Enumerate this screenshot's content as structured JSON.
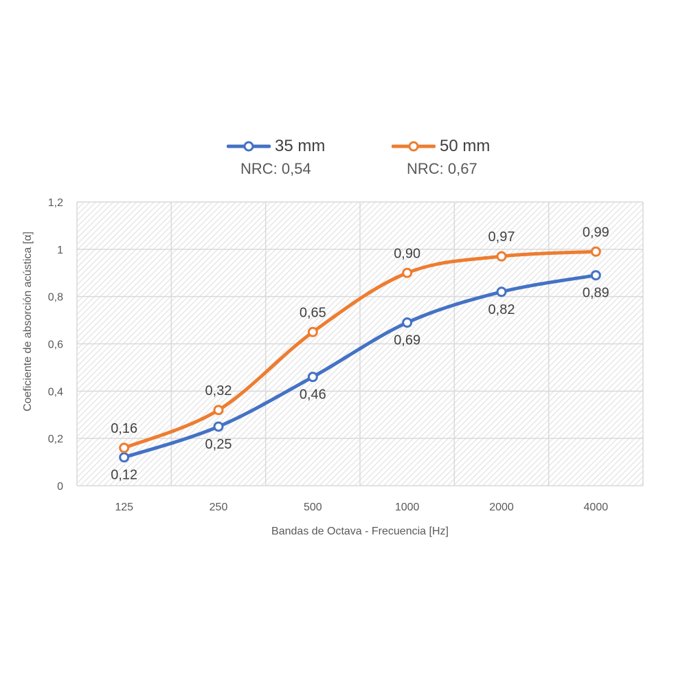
{
  "chart_data": {
    "type": "line",
    "categories": [
      "125",
      "250",
      "500",
      "1000",
      "2000",
      "4000"
    ],
    "series": [
      {
        "name": "35 mm",
        "subtitle": "NRC: 0,54",
        "color": "#4472C4",
        "values": [
          0.12,
          0.25,
          0.46,
          0.69,
          0.82,
          0.89
        ],
        "labels": [
          "0,12",
          "0,25",
          "0,46",
          "0,69",
          "0,82",
          "0,89"
        ]
      },
      {
        "name": "50 mm",
        "subtitle": "NRC: 0,67",
        "color": "#ED7D31",
        "values": [
          0.16,
          0.32,
          0.65,
          0.9,
          0.97,
          0.99
        ],
        "labels": [
          "0,16",
          "0,32",
          "0,65",
          "0,90",
          "0,97",
          "0,99"
        ]
      }
    ],
    "xlabel": "Bandas de Octava - Frecuencia [Hz]",
    "ylabel": "Coeficiente de absorción acústica [α]",
    "ylim": [
      0,
      1.2
    ],
    "yticks": [
      "0",
      "0,2",
      "0,4",
      "0,6",
      "0,8",
      "1",
      "1,2"
    ],
    "grid": true,
    "smooth": true,
    "legend_position": "top"
  }
}
